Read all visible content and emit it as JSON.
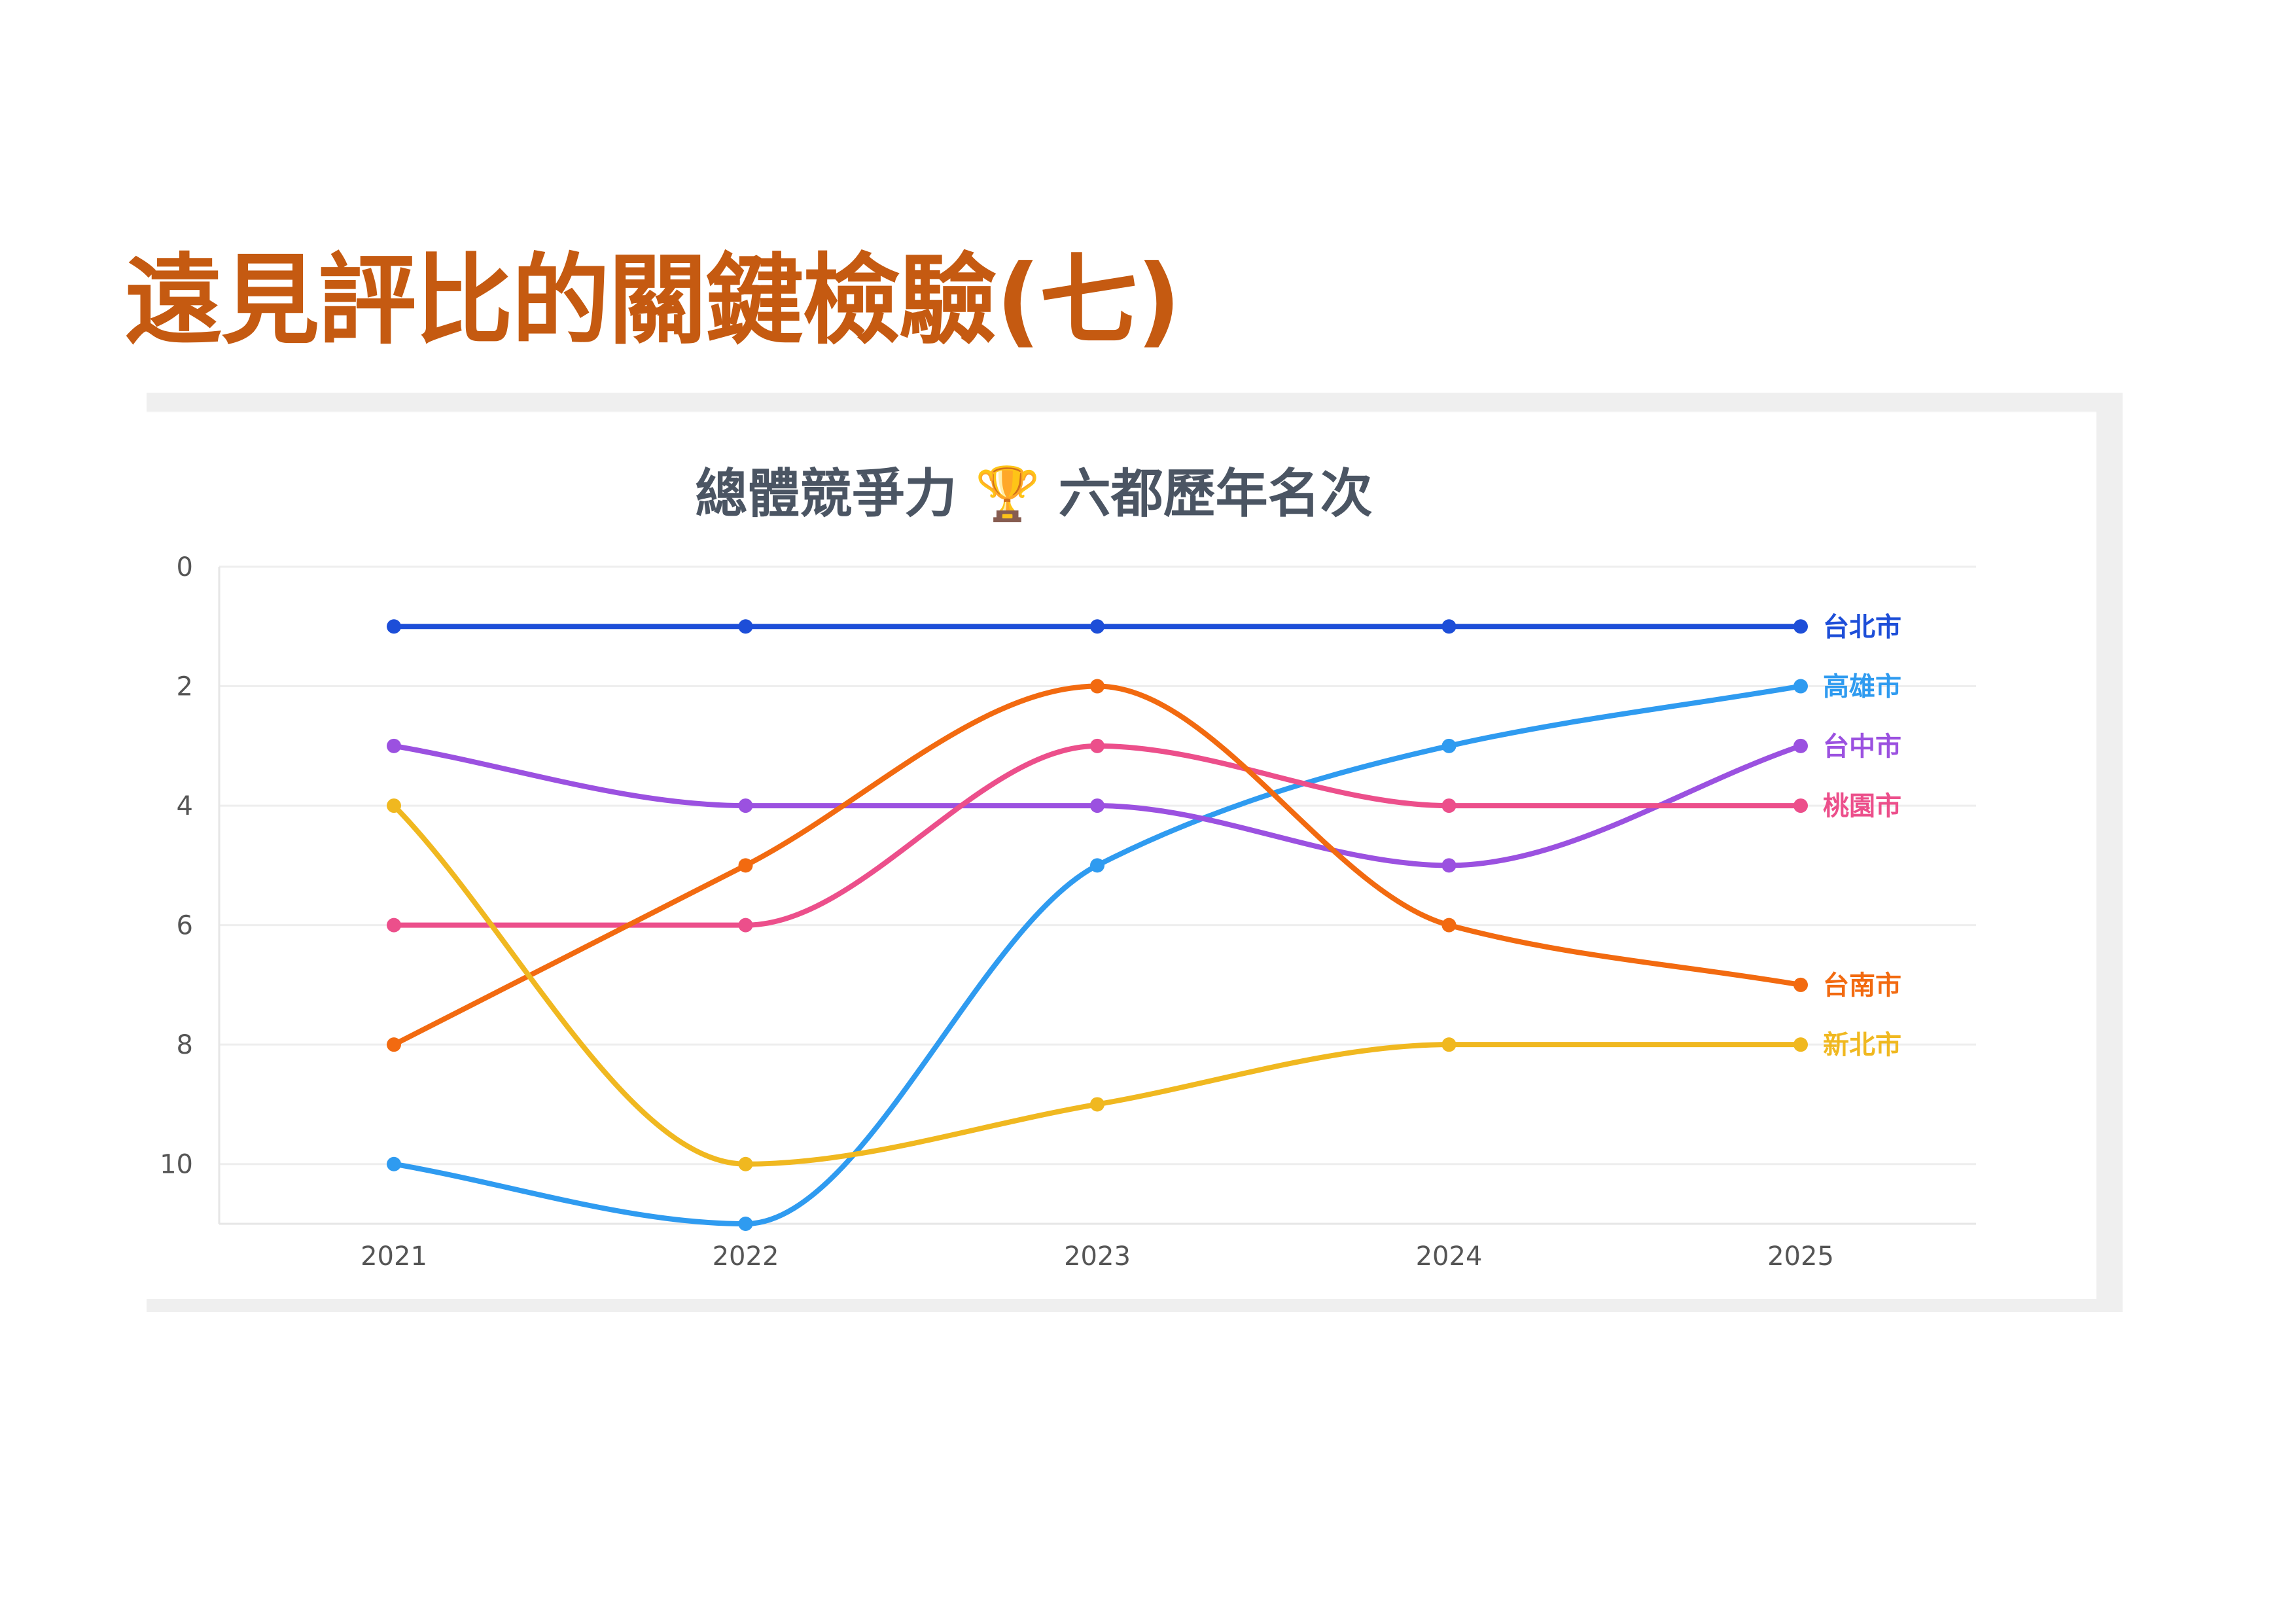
{
  "slide": {
    "title": "遠見評比的關鍵檢驗(七)"
  },
  "chart_data": {
    "type": "line",
    "title": "總體競爭力 🏆 六都歷年名次",
    "xlabel": "",
    "ylabel": "",
    "x": [
      "2021",
      "2022",
      "2023",
      "2024",
      "2025"
    ],
    "ylim": [
      0,
      11
    ],
    "y_inverted": true,
    "y_ticks": [
      0,
      2,
      4,
      6,
      8,
      10
    ],
    "grid": true,
    "curve": "smooth",
    "legend": "labels-at-right-end",
    "series": [
      {
        "name": "台北市",
        "color": "#1d4ed8",
        "values": [
          1,
          1,
          1,
          1,
          1
        ]
      },
      {
        "name": "高雄市",
        "color": "#2f9bf0",
        "values": [
          10,
          11,
          5,
          3,
          2
        ]
      },
      {
        "name": "台中市",
        "color": "#9b51e0",
        "values": [
          3,
          4,
          4,
          5,
          3
        ]
      },
      {
        "name": "桃園市",
        "color": "#ec4f8b",
        "values": [
          6,
          6,
          3,
          4,
          4
        ]
      },
      {
        "name": "台南市",
        "color": "#f26a10",
        "values": [
          8,
          5,
          2,
          6,
          7
        ]
      },
      {
        "name": "新北市",
        "color": "#f0b820",
        "values": [
          4,
          10,
          9,
          8,
          8
        ]
      }
    ]
  }
}
